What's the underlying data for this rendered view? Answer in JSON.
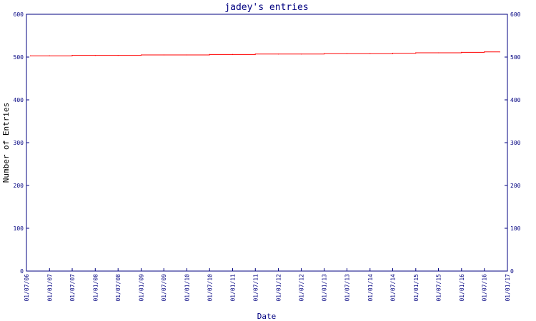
{
  "chart_data": {
    "type": "line",
    "title": "jadey's entries",
    "xlabel": "Date",
    "ylabel": "Number of Entries",
    "ylim": [
      0,
      600
    ],
    "y_ticks": [
      0,
      100,
      200,
      300,
      400,
      500,
      600
    ],
    "x_ticks": [
      "01/07/06",
      "01/01/07",
      "01/07/07",
      "01/01/08",
      "01/07/08",
      "01/01/09",
      "01/07/09",
      "01/01/10",
      "01/07/10",
      "01/01/11",
      "01/07/11",
      "01/01/12",
      "01/07/12",
      "01/01/13",
      "01/07/13",
      "01/01/14",
      "01/07/14",
      "01/01/15",
      "01/07/15",
      "01/01/16",
      "01/07/16",
      "01/01/17"
    ],
    "x": [
      "01/08/06",
      "01/01/07",
      "01/07/07",
      "01/01/08",
      "01/07/08",
      "01/01/09",
      "01/07/09",
      "01/01/10",
      "01/07/10",
      "01/01/11",
      "01/07/11",
      "01/01/12",
      "01/07/12",
      "01/01/13",
      "01/07/13",
      "01/01/14",
      "01/07/14",
      "01/01/15",
      "01/07/15",
      "01/01/16",
      "01/07/16",
      "01/11/16"
    ],
    "y": [
      503,
      503,
      504,
      504,
      504,
      505,
      505,
      505,
      506,
      506,
      507,
      507,
      507,
      508,
      508,
      508,
      509,
      510,
      510,
      511,
      512,
      512
    ],
    "grid": false,
    "colors": {
      "line": "#ff0000",
      "axes": "#000080",
      "title": "#000080"
    }
  }
}
